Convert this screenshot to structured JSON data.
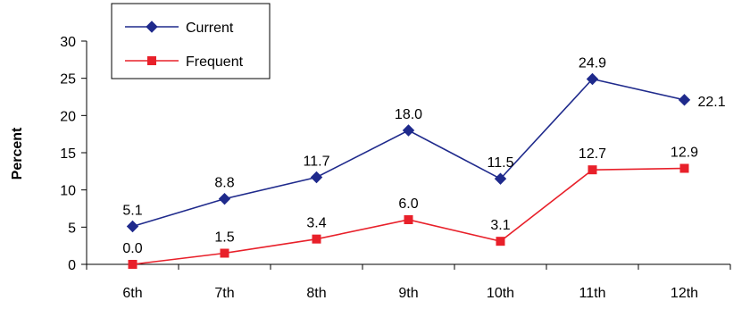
{
  "chart_data": {
    "type": "line",
    "categories": [
      "6th",
      "7th",
      "8th",
      "9th",
      "10th",
      "11th",
      "12th"
    ],
    "series": [
      {
        "name": "Current",
        "values": [
          5.1,
          8.8,
          11.7,
          18.0,
          11.5,
          24.9,
          22.1
        ],
        "labels": [
          "5.1",
          "8.8",
          "11.7",
          "18.0",
          "11.5",
          "24.9",
          "22.1"
        ],
        "color": "#1f2a8c",
        "marker": "diamond"
      },
      {
        "name": "Frequent",
        "values": [
          0.0,
          1.5,
          3.4,
          6.0,
          3.1,
          12.7,
          12.9
        ],
        "labels": [
          "0.0",
          "1.5",
          "3.4",
          "6.0",
          "3.1",
          "12.7",
          "12.9"
        ],
        "color": "#e8202a",
        "marker": "square"
      }
    ],
    "title": "",
    "xlabel": "",
    "ylabel": "Percent",
    "ylim": [
      0,
      30
    ],
    "yticks": [
      "0",
      "5",
      "10",
      "15",
      "20",
      "25",
      "30"
    ],
    "grid": false,
    "legend_position": "top-left"
  }
}
